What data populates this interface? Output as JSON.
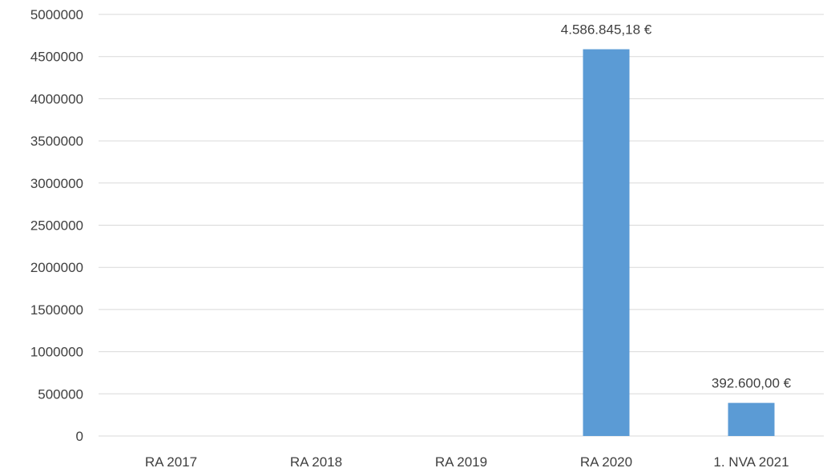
{
  "chart_data": {
    "type": "bar",
    "title": "",
    "xlabel": "",
    "ylabel": "",
    "categories": [
      "RA 2017",
      "RA 2018",
      "RA 2019",
      "RA 2020",
      "1. NVA 2021"
    ],
    "values": [
      0,
      0,
      0,
      4586845.18,
      392600.0
    ],
    "data_labels": [
      "",
      "",
      "",
      "4.586.845,18 €",
      "392.600,00 €"
    ],
    "ylim": [
      0,
      5000000
    ],
    "yticks": [
      0,
      500000,
      1000000,
      1500000,
      2000000,
      2500000,
      3000000,
      3500000,
      4000000,
      4500000,
      5000000
    ],
    "ytick_labels": [
      "0",
      "500000",
      "1000000",
      "1500000",
      "2000000",
      "2500000",
      "3000000",
      "3500000",
      "4000000",
      "4500000",
      "5000000"
    ],
    "grid": true,
    "legend": "none",
    "colors": {
      "bar": "#5b9bd5",
      "grid": "#d9d9d9",
      "text": "#404040"
    }
  }
}
